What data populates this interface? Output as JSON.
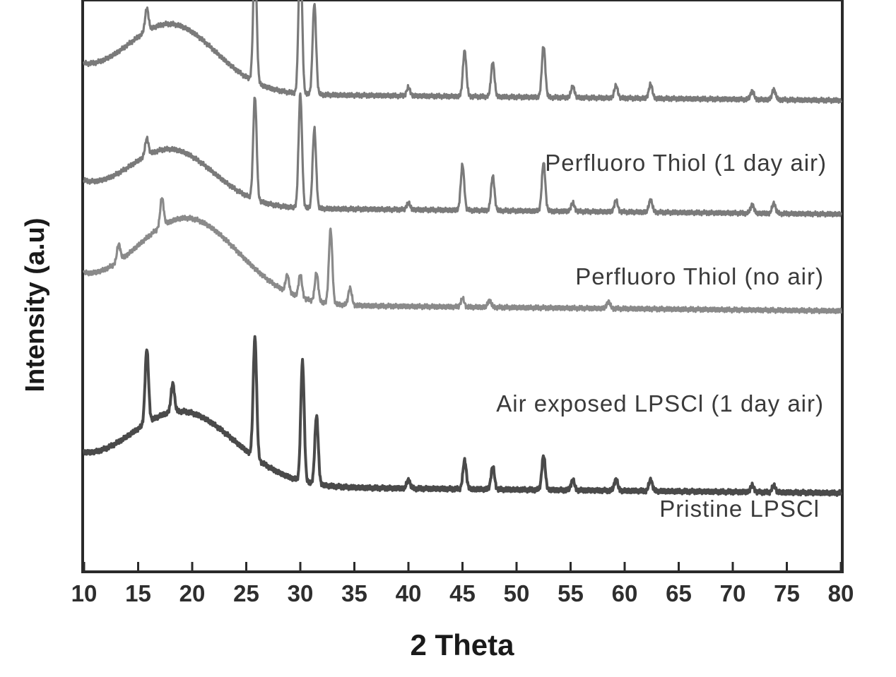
{
  "chart_data": {
    "type": "line",
    "xlabel": "2 Theta",
    "ylabel": "Intensity (a.u)",
    "xlim": [
      10,
      80
    ],
    "xticks": [
      10,
      15,
      20,
      25,
      30,
      35,
      40,
      45,
      50,
      55,
      60,
      65,
      70,
      75,
      80
    ],
    "ylim": [
      0,
      100
    ],
    "yticks_shown": false,
    "grid": false,
    "legend": "inline labels beside each trace",
    "series": [
      {
        "name": "Perfluoro Thiol (1 day air)",
        "color": "#7a7a7a",
        "baseline": 84,
        "broad_peak": {
          "center": 18.0,
          "width": 4.2,
          "height": 12
        },
        "peaks": [
          {
            "x": 15.8,
            "height": 4
          },
          {
            "x": 25.8,
            "height": 22
          },
          {
            "x": 30.0,
            "height": 26
          },
          {
            "x": 31.3,
            "height": 16
          },
          {
            "x": 40.0,
            "height": 1.5
          },
          {
            "x": 45.2,
            "height": 8
          },
          {
            "x": 47.8,
            "height": 6
          },
          {
            "x": 52.5,
            "height": 9
          },
          {
            "x": 55.2,
            "height": 2
          },
          {
            "x": 59.2,
            "height": 2.2
          },
          {
            "x": 62.4,
            "height": 2.5
          },
          {
            "x": 71.8,
            "height": 1.5
          },
          {
            "x": 73.8,
            "height": 1.8
          }
        ]
      },
      {
        "name": "Perfluoro Thiol (no air)",
        "color": "#7a7a7a",
        "baseline": 64,
        "broad_peak": {
          "center": 18.0,
          "width": 4.0,
          "height": 10
        },
        "peaks": [
          {
            "x": 15.8,
            "height": 3
          },
          {
            "x": 25.8,
            "height": 18
          },
          {
            "x": 30.0,
            "height": 20
          },
          {
            "x": 31.3,
            "height": 14
          },
          {
            "x": 40.0,
            "height": 1.2
          },
          {
            "x": 45.0,
            "height": 8
          },
          {
            "x": 47.8,
            "height": 6
          },
          {
            "x": 52.5,
            "height": 8.5
          },
          {
            "x": 55.2,
            "height": 1.5
          },
          {
            "x": 59.2,
            "height": 2
          },
          {
            "x": 62.4,
            "height": 2.2
          },
          {
            "x": 71.8,
            "height": 1.5
          },
          {
            "x": 73.8,
            "height": 1.8
          }
        ]
      },
      {
        "name": "Air exposed LPSCl (1 day air)",
        "color": "#8a8a8a",
        "baseline": 47,
        "broad_peak": {
          "center": 19.5,
          "width": 4.8,
          "height": 15
        },
        "peaks": [
          {
            "x": 13.2,
            "height": 3
          },
          {
            "x": 17.2,
            "height": 5
          },
          {
            "x": 28.8,
            "height": 3
          },
          {
            "x": 30.0,
            "height": 4
          },
          {
            "x": 31.5,
            "height": 5
          },
          {
            "x": 32.8,
            "height": 13
          },
          {
            "x": 34.6,
            "height": 3
          },
          {
            "x": 45.0,
            "height": 1.5
          },
          {
            "x": 47.5,
            "height": 1.2
          },
          {
            "x": 58.5,
            "height": 1.2
          }
        ]
      },
      {
        "name": "Pristine LPSCl",
        "color": "#4a4a4a",
        "baseline": 15,
        "broad_peak": {
          "center": 19.0,
          "width": 5.0,
          "height": 13
        },
        "peaks": [
          {
            "x": 15.8,
            "height": 13
          },
          {
            "x": 18.2,
            "height": 5
          },
          {
            "x": 25.8,
            "height": 21
          },
          {
            "x": 30.2,
            "height": 21
          },
          {
            "x": 31.5,
            "height": 12
          },
          {
            "x": 40.0,
            "height": 1.5
          },
          {
            "x": 45.2,
            "height": 5
          },
          {
            "x": 47.8,
            "height": 4
          },
          {
            "x": 52.5,
            "height": 6
          },
          {
            "x": 55.2,
            "height": 1.8
          },
          {
            "x": 59.2,
            "height": 2
          },
          {
            "x": 62.4,
            "height": 2
          },
          {
            "x": 71.8,
            "height": 1.2
          },
          {
            "x": 73.8,
            "height": 1.2
          }
        ]
      }
    ]
  }
}
